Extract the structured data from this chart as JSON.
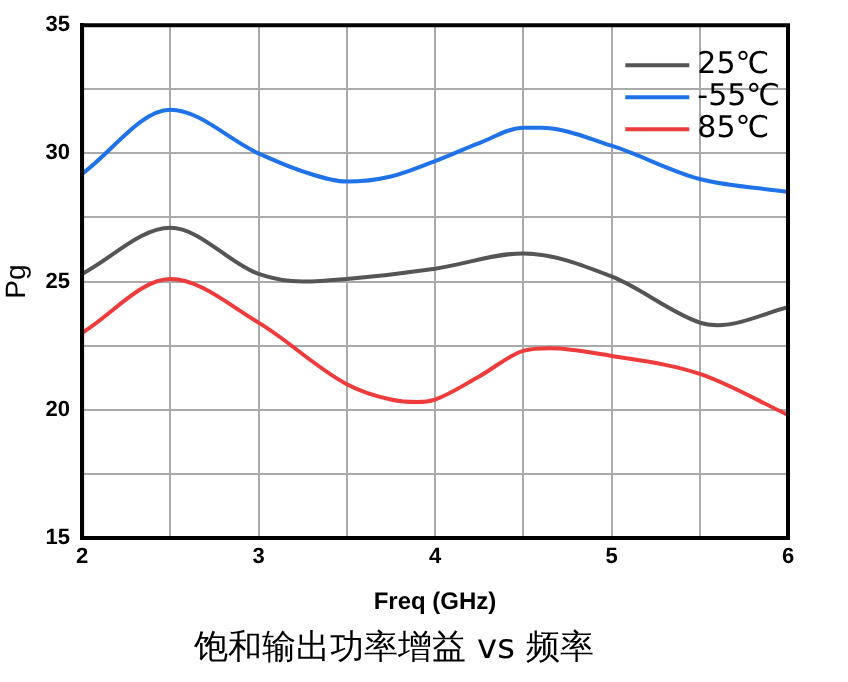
{
  "chart_data": {
    "type": "line",
    "title": "饱和输出功率增益 vs 频率",
    "xlabel": "Freq (GHz)",
    "ylabel": "Pg",
    "xlim": [
      2,
      6
    ],
    "xticks": [
      2,
      {
        "value": 2.5,
        "label": null
      },
      3,
      {
        "value": 3.5,
        "label": null
      },
      4,
      {
        "value": 4.5,
        "label": null
      },
      5,
      {
        "value": 5.5,
        "label": null
      },
      6
    ],
    "ylim": [
      15,
      35
    ],
    "yticks": [
      15,
      {
        "value": 17.5,
        "label": null
      },
      20,
      {
        "value": 22.5,
        "label": null
      },
      25,
      {
        "value": 27.5,
        "label": null
      },
      30,
      {
        "value": 32.5,
        "label": null
      },
      35
    ],
    "grid": true,
    "legend": "top right",
    "marker": "none",
    "line_style": "solid",
    "series": [
      {
        "name": "25℃",
        "color": "#555555",
        "x": [
          2,
          2.5,
          3,
          3.25,
          3.5,
          4,
          4.5,
          5,
          5.5,
          5.6,
          6
        ],
        "values": [
          25.3,
          27.1,
          25.3,
          25.0,
          25.1,
          25.5,
          26.1,
          25.2,
          23.4,
          23.3,
          24.0
        ]
      },
      {
        "name": "-55℃",
        "color": "#1f72e8",
        "x": [
          2,
          2.5,
          3,
          3.25,
          3.5,
          3.75,
          4,
          4.25,
          4.5,
          4.6,
          5,
          5.5,
          6
        ],
        "values": [
          29.2,
          31.7,
          30.0,
          29.3,
          28.9,
          29.1,
          29.7,
          30.4,
          31.0,
          31.0,
          30.3,
          29.0,
          28.5
        ]
      },
      {
        "name": "85℃",
        "color": "#ee3b3b",
        "x": [
          2,
          2.5,
          3,
          3.5,
          3.75,
          3.9,
          4,
          4.25,
          4.5,
          4.65,
          5,
          5.5,
          6
        ],
        "values": [
          23.0,
          25.1,
          23.4,
          21.0,
          20.4,
          20.3,
          20.4,
          21.3,
          22.3,
          22.4,
          22.1,
          21.4,
          19.8
        ]
      }
    ]
  }
}
